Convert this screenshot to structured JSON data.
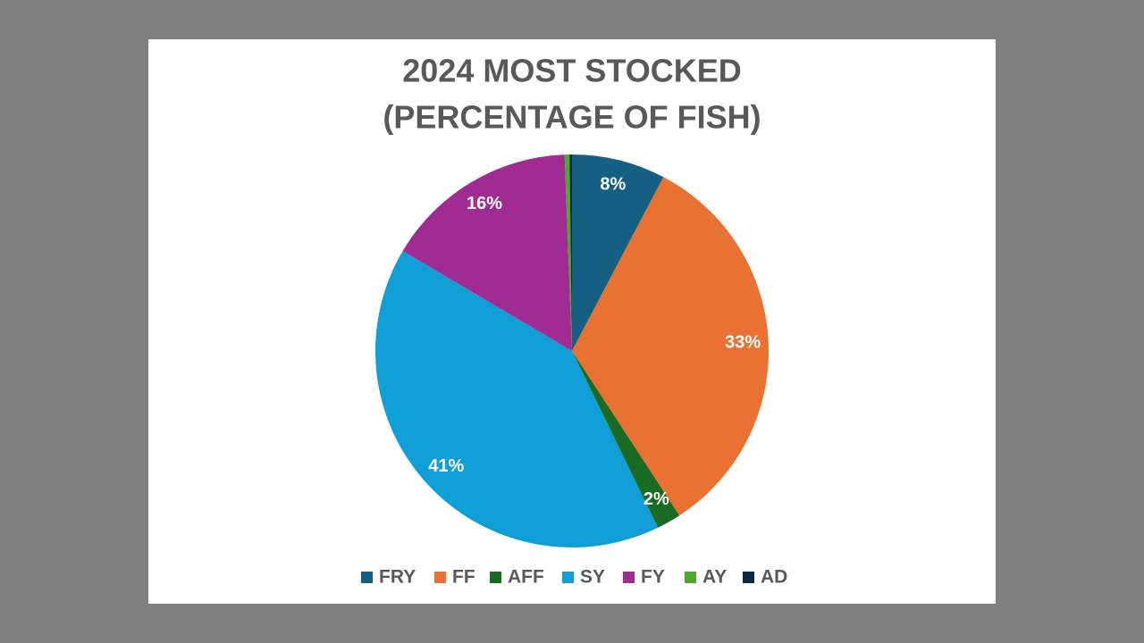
{
  "chart_data": {
    "type": "pie",
    "title": [
      "2024 MOST STOCKED",
      "(PERCENTAGE OF FISH)"
    ],
    "categories": [
      "FRY",
      "FF",
      "AFF",
      "SY",
      "FY",
      "AY",
      "AD"
    ],
    "values": [
      7.7,
      33.1,
      2.0,
      40.7,
      15.9,
      0.4,
      0.2
    ],
    "value_labels": [
      "8%",
      "33%",
      "2%",
      "41%",
      "16%",
      null,
      null
    ],
    "colors": [
      "#156082",
      "#e97132",
      "#196b24",
      "#0f9ed5",
      "#a02b93",
      "#4ea72e",
      "#0e2841"
    ],
    "legend": "bottom"
  }
}
